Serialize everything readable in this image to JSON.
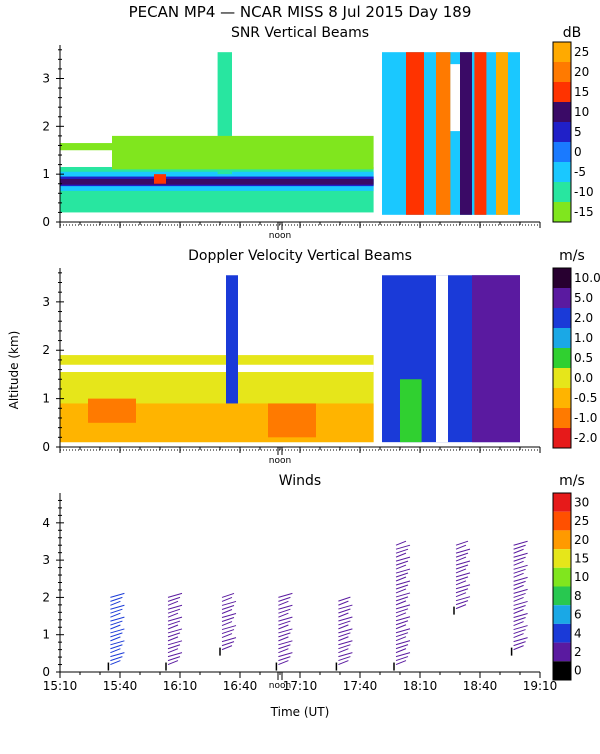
{
  "figure": {
    "title": "PECAN MP4 — NCAR MISS    8 Jul 2015 Day 189",
    "ylabel": "Altitude (km)",
    "xlabel": "Time (UT)",
    "noon_label": "noon"
  },
  "colors": {
    "background": "#ffffff",
    "axis": "#000000"
  },
  "chart_data": [
    {
      "id": "snr",
      "type": "heatmap",
      "title": "SNR Vertical Beams",
      "units": "dB",
      "ylim": [
        0,
        3.7
      ],
      "yticks": [
        "0",
        "1",
        "2",
        "3"
      ],
      "colorbar_labels": [
        "25",
        "20",
        "15",
        "10",
        "5",
        "0",
        "-5",
        "-10",
        "-15"
      ],
      "colorbar_colors": [
        "#ffaa00",
        "#ff7a00",
        "#ff3300",
        "#3a0a66",
        "#2020c8",
        "#1a7aff",
        "#1ac8ff",
        "#28e6a0",
        "#80e61e"
      ],
      "gap_hours": [
        17.8,
        17.85
      ],
      "blocks": [
        {
          "x0": 15.17,
          "x1": 16.0,
          "y0": 1.5,
          "y1": 1.65,
          "c": "#80e61e"
        },
        {
          "x0": 15.17,
          "x1": 17.78,
          "y0": 0.2,
          "y1": 1.15,
          "c": "#28e6a0"
        },
        {
          "x0": 15.17,
          "x1": 17.78,
          "y0": 0.65,
          "y1": 1.05,
          "c": "#1ac8ff"
        },
        {
          "x0": 15.17,
          "x1": 17.78,
          "y0": 0.75,
          "y1": 0.95,
          "c": "#2020c8"
        },
        {
          "x0": 15.17,
          "x1": 17.78,
          "y0": 0.78,
          "y1": 0.9,
          "c": "#3a0a66"
        },
        {
          "x0": 15.95,
          "x1": 16.05,
          "y0": 0.8,
          "y1": 1.0,
          "c": "#ff3300"
        },
        {
          "x0": 16.48,
          "x1": 16.6,
          "y0": 1.0,
          "y1": 3.55,
          "c": "#28e6a0"
        },
        {
          "x0": 15.6,
          "x1": 17.78,
          "y0": 1.1,
          "y1": 1.8,
          "c": "#80e61e"
        },
        {
          "x0": 17.85,
          "x1": 19.0,
          "y0": 0.15,
          "y1": 3.55,
          "c": "#1ac8ff"
        },
        {
          "x0": 18.05,
          "x1": 18.2,
          "y0": 0.15,
          "y1": 3.55,
          "c": "#ff3300"
        },
        {
          "x0": 18.3,
          "x1": 18.42,
          "y0": 0.15,
          "y1": 3.55,
          "c": "#ff7a00"
        },
        {
          "x0": 18.5,
          "x1": 18.6,
          "y0": 0.15,
          "y1": 3.55,
          "c": "#3a0a66"
        },
        {
          "x0": 18.62,
          "x1": 18.72,
          "y0": 0.15,
          "y1": 3.55,
          "c": "#ff3300"
        },
        {
          "x0": 18.8,
          "x1": 18.9,
          "y0": 0.15,
          "y1": 3.55,
          "c": "#ffaa00"
        },
        {
          "x0": 18.42,
          "x1": 18.5,
          "y0": 1.9,
          "y1": 3.3,
          "c": "#ffffff"
        }
      ]
    },
    {
      "id": "doppler",
      "type": "heatmap",
      "title": "Doppler Velocity Vertical Beams",
      "units": "m/s",
      "ylim": [
        0,
        3.7
      ],
      "yticks": [
        "0",
        "1",
        "2",
        "3"
      ],
      "colorbar_labels": [
        "10.0",
        "5.0",
        "2.0",
        "1.0",
        "0.5",
        "0.0",
        "-0.5",
        "-1.0",
        "-2.0"
      ],
      "colorbar_colors": [
        "#280030",
        "#5a1aa0",
        "#1a3ad8",
        "#1aa8e6",
        "#30d030",
        "#e6e61a",
        "#ffb400",
        "#ff7a00",
        "#e61a1a"
      ],
      "gap_hours": [
        17.8,
        17.85
      ],
      "blocks": [
        {
          "x0": 15.17,
          "x1": 17.78,
          "y0": 0.1,
          "y1": 1.9,
          "c": "#e6e61a"
        },
        {
          "x0": 15.17,
          "x1": 17.78,
          "y0": 0.1,
          "y1": 0.9,
          "c": "#ffb400"
        },
        {
          "x0": 15.4,
          "x1": 15.8,
          "y0": 0.5,
          "y1": 1.0,
          "c": "#ff7a00"
        },
        {
          "x0": 16.9,
          "x1": 17.3,
          "y0": 0.2,
          "y1": 0.9,
          "c": "#ff7a00"
        },
        {
          "x0": 15.17,
          "x1": 17.78,
          "y0": 1.55,
          "y1": 1.7,
          "c": "#ffffff"
        },
        {
          "x0": 16.55,
          "x1": 16.65,
          "y0": 0.9,
          "y1": 3.55,
          "c": "#1a3ad8"
        },
        {
          "x0": 17.85,
          "x1": 19.0,
          "y0": 0.1,
          "y1": 3.55,
          "c": "#1a3ad8"
        },
        {
          "x0": 18.6,
          "x1": 19.0,
          "y0": 0.1,
          "y1": 3.55,
          "c": "#5a1aa0"
        },
        {
          "x0": 18.0,
          "x1": 18.18,
          "y0": 0.1,
          "y1": 1.4,
          "c": "#30d030"
        },
        {
          "x0": 18.3,
          "x1": 18.4,
          "y0": 0.1,
          "y1": 3.55,
          "c": "#ffffff"
        }
      ]
    },
    {
      "id": "winds",
      "type": "scatter",
      "title": "Winds",
      "units": "m/s",
      "ylim": [
        0,
        4.8
      ],
      "yticks": [
        "0",
        "1",
        "2",
        "3",
        "4"
      ],
      "xlim": [
        15.1667,
        19.1667
      ],
      "xtick_labels": [
        "15:10",
        "15:40",
        "16:10",
        "16:40",
        "17:10",
        "17:40",
        "18:10",
        "18:40",
        "19:10"
      ],
      "colorbar_labels": [
        "30",
        "25",
        "20",
        "15",
        "10",
        "8",
        "6",
        "4",
        "2",
        "0"
      ],
      "colorbar_colors": [
        "#e61a1a",
        "#ff5000",
        "#ff9a00",
        "#e6e61a",
        "#80e61e",
        "#28c850",
        "#1aa8e6",
        "#1a3ad8",
        "#5a1aa0",
        "#000000"
      ],
      "profiles": [
        {
          "t": 15.62,
          "y0": 0.2,
          "y1": 2.0,
          "c": "#1a3ad8"
        },
        {
          "t": 16.1,
          "y0": 0.2,
          "y1": 2.0,
          "c": "#5a1aa0"
        },
        {
          "t": 16.55,
          "y0": 0.6,
          "y1": 2.0,
          "c": "#5a1aa0"
        },
        {
          "t": 17.02,
          "y0": 0.2,
          "y1": 2.0,
          "c": "#5a1aa0"
        },
        {
          "t": 17.52,
          "y0": 0.2,
          "y1": 1.9,
          "c": "#5a1aa0"
        },
        {
          "t": 18.0,
          "y0": 0.2,
          "y1": 3.4,
          "c": "#5a1aa0"
        },
        {
          "t": 18.5,
          "y0": 1.7,
          "y1": 3.4,
          "c": "#5a1aa0"
        },
        {
          "t": 18.98,
          "y0": 0.6,
          "y1": 3.4,
          "c": "#5a1aa0"
        }
      ]
    }
  ]
}
